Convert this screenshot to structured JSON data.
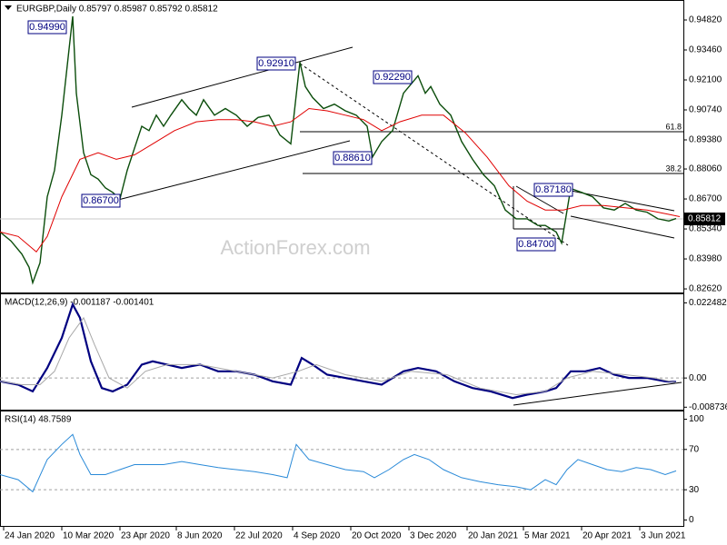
{
  "chart_data": [
    {
      "type": "line",
      "title": "EURGBP,Daily  0.85797 0.85987 0.85792 0.85812",
      "xlim": [
        0,
        376
      ],
      "ylim": [
        0.8254,
        0.9552
      ],
      "yticks": [
        {
          "value": 0.9482,
          "label": "0.94820"
        },
        {
          "value": 0.9346,
          "label": "0.93460"
        },
        {
          "value": 0.921,
          "label": "0.92100"
        },
        {
          "value": 0.9074,
          "label": "0.90740"
        },
        {
          "value": 0.8938,
          "label": "0.89380"
        },
        {
          "value": 0.8806,
          "label": "0.88060"
        },
        {
          "value": 0.867,
          "label": "0.86700"
        },
        {
          "value": 0.8534,
          "label": "0.85340"
        },
        {
          "value": 0.8398,
          "label": "0.83980"
        },
        {
          "value": 0.8262,
          "label": "0.82620"
        }
      ],
      "grid": false,
      "series": [
        {
          "name": "EURGBP",
          "color": "#0b4d0b",
          "x": [
            0,
            6,
            12,
            16,
            18,
            22,
            26,
            30,
            34,
            38,
            40,
            42,
            46,
            50,
            54,
            58,
            62,
            66,
            70,
            74,
            78,
            82,
            86,
            90,
            94,
            100,
            104,
            108,
            112,
            118,
            124,
            130,
            136,
            142,
            148,
            154,
            160,
            165,
            168,
            172,
            178,
            184,
            190,
            196,
            202,
            205,
            210,
            216,
            222,
            230,
            234,
            237,
            242,
            248,
            254,
            260,
            266,
            272,
            278,
            284,
            290,
            296,
            300,
            306,
            309,
            314,
            320,
            326,
            332,
            338,
            344,
            350,
            356,
            362,
            368,
            372
          ],
          "values": [
            0.852,
            0.848,
            0.842,
            0.836,
            0.829,
            0.838,
            0.868,
            0.88,
            0.905,
            0.935,
            0.9499,
            0.915,
            0.888,
            0.878,
            0.876,
            0.872,
            0.87,
            0.867,
            0.88,
            0.89,
            0.9,
            0.898,
            0.905,
            0.9,
            0.905,
            0.912,
            0.908,
            0.905,
            0.912,
            0.905,
            0.908,
            0.905,
            0.9,
            0.904,
            0.905,
            0.896,
            0.892,
            0.9291,
            0.918,
            0.913,
            0.908,
            0.91,
            0.907,
            0.905,
            0.9,
            0.8861,
            0.893,
            0.898,
            0.915,
            0.9229,
            0.915,
            0.918,
            0.91,
            0.905,
            0.893,
            0.885,
            0.878,
            0.873,
            0.862,
            0.858,
            0.858,
            0.855,
            0.855,
            0.852,
            0.847,
            0.8718,
            0.87,
            0.868,
            0.863,
            0.862,
            0.865,
            0.862,
            0.861,
            0.858,
            0.857,
            0.85812
          ]
        },
        {
          "name": "MA",
          "color": "#e00000",
          "x": [
            0,
            10,
            20,
            26,
            34,
            44,
            54,
            64,
            74,
            84,
            96,
            108,
            120,
            130,
            140,
            150,
            160,
            170,
            180,
            190,
            200,
            210,
            220,
            232,
            244,
            256,
            268,
            280,
            290,
            300,
            310,
            320,
            332,
            344,
            356,
            368,
            374
          ],
          "values": [
            0.852,
            0.85,
            0.843,
            0.85,
            0.868,
            0.885,
            0.888,
            0.885,
            0.887,
            0.892,
            0.898,
            0.902,
            0.903,
            0.903,
            0.902,
            0.9,
            0.902,
            0.908,
            0.907,
            0.905,
            0.903,
            0.898,
            0.902,
            0.905,
            0.905,
            0.897,
            0.886,
            0.873,
            0.866,
            0.862,
            0.862,
            0.864,
            0.864,
            0.863,
            0.862,
            0.86,
            0.859
          ]
        }
      ],
      "price_labels": [
        "0.94990",
        "0.92910",
        "0.92290",
        "0.88610",
        "0.86700",
        "0.87180",
        "0.84700"
      ],
      "fib_labels": [
        "61.8",
        "38.2"
      ],
      "watermark": "ActionForex.com",
      "last_price_label": "0.85812"
    },
    {
      "type": "line",
      "title": "MACD(12,26,9) -0.001187 -0.001401",
      "xlim": [
        0,
        376
      ],
      "ylim": [
        -0.0092,
        0.0245
      ],
      "yticks": [
        -0.008736,
        {
          "value": 0,
          "label": "0.00"
        },
        0.022482
      ],
      "grid": "inner-dashed",
      "series": [
        {
          "name": "MACD",
          "color": "#000080",
          "x": [
            0,
            10,
            18,
            26,
            34,
            40,
            44,
            50,
            56,
            62,
            70,
            78,
            84,
            92,
            100,
            110,
            120,
            130,
            140,
            150,
            160,
            166,
            172,
            180,
            190,
            200,
            210,
            222,
            230,
            240,
            250,
            260,
            270,
            282,
            290,
            300,
            306,
            314,
            322,
            330,
            338,
            346,
            356,
            366,
            372
          ],
          "values": [
            -0.001,
            -0.002,
            -0.004,
            0.003,
            0.012,
            0.022,
            0.018,
            0.005,
            -0.003,
            -0.004,
            -0.002,
            0.004,
            0.005,
            0.004,
            0.003,
            0.004,
            0.002,
            0.002,
            0.001,
            -0.001,
            -0.002,
            0.006,
            0.004,
            0.001,
            0,
            -0.001,
            -0.002,
            0.002,
            0.003,
            0.002,
            -0.001,
            -0.003,
            -0.004,
            -0.006,
            -0.005,
            -0.004,
            -0.003,
            0.002,
            0.002,
            0.003,
            0.001,
            0,
            0,
            -0.001,
            -0.001187
          ]
        },
        {
          "name": "Signal",
          "color": "#a8a8a8",
          "x": [
            0,
            12,
            22,
            30,
            38,
            46,
            52,
            60,
            70,
            80,
            92,
            110,
            130,
            150,
            164,
            174,
            190,
            210,
            226,
            246,
            264,
            284,
            300,
            312,
            326,
            344,
            360,
            372
          ],
          "values": [
            -0.001,
            -0.002,
            -0.002,
            0.002,
            0.012,
            0.018,
            0.01,
            0,
            -0.003,
            0.002,
            0.004,
            0.004,
            0.002,
            0,
            0.002,
            0.004,
            0.001,
            -0.001,
            0.002,
            0.001,
            -0.003,
            -0.005,
            -0.004,
            0,
            0.002,
            0.001,
            0,
            -0.001401
          ]
        }
      ]
    },
    {
      "type": "line",
      "title": "RSI(14) 48.7589",
      "xlim": [
        0,
        376
      ],
      "ylim": [
        -5,
        105
      ],
      "yticks": [
        0,
        30,
        70,
        100
      ],
      "grid": "inner-dashed",
      "xticks": [
        {
          "value": 2,
          "label": "24 Jan 2020"
        },
        {
          "value": 34,
          "label": "10 Mar 2020"
        },
        {
          "value": 66,
          "label": "23 Apr 2020"
        },
        {
          "value": 97,
          "label": "8 Jun 2020"
        },
        {
          "value": 129,
          "label": "22 Jul 2020"
        },
        {
          "value": 161,
          "label": "4 Sep 2020"
        },
        {
          "value": 193,
          "label": "20 Oct 2020"
        },
        {
          "value": 225,
          "label": "3 Dec 2020"
        },
        {
          "value": 257,
          "label": "20 Jan 2021"
        },
        {
          "value": 288,
          "label": "5 Mar 2021"
        },
        {
          "value": 320,
          "label": "20 Apr 2021"
        },
        {
          "value": 352,
          "label": "3 Jun 2021"
        }
      ],
      "series": [
        {
          "name": "RSI",
          "color": "#2a8ad8",
          "x": [
            0,
            10,
            18,
            26,
            34,
            40,
            44,
            50,
            58,
            66,
            74,
            82,
            90,
            100,
            110,
            120,
            130,
            140,
            150,
            158,
            163,
            170,
            180,
            190,
            200,
            206,
            214,
            222,
            228,
            236,
            244,
            254,
            264,
            274,
            284,
            292,
            300,
            306,
            312,
            318,
            326,
            334,
            342,
            350,
            358,
            366,
            372
          ],
          "values": [
            45,
            40,
            28,
            60,
            75,
            85,
            65,
            45,
            45,
            50,
            55,
            55,
            55,
            58,
            55,
            52,
            50,
            48,
            45,
            42,
            75,
            60,
            55,
            50,
            48,
            42,
            50,
            60,
            65,
            60,
            50,
            42,
            38,
            35,
            33,
            30,
            40,
            35,
            50,
            60,
            55,
            50,
            48,
            52,
            50,
            45,
            48.7589
          ]
        }
      ]
    }
  ]
}
